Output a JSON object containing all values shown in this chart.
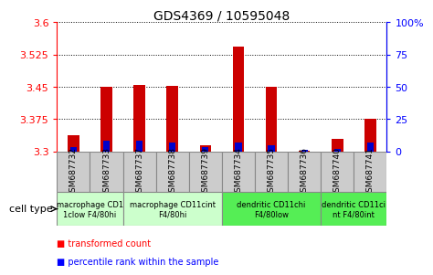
{
  "title": "GDS4369 / 10595048",
  "samples": [
    "GSM687732",
    "GSM687733",
    "GSM687737",
    "GSM687738",
    "GSM687739",
    "GSM687734",
    "GSM687735",
    "GSM687736",
    "GSM687740",
    "GSM687741"
  ],
  "transformed_count": [
    3.338,
    3.449,
    3.455,
    3.452,
    3.315,
    3.543,
    3.45,
    3.302,
    3.328,
    3.375
  ],
  "percentile_rank": [
    3,
    8,
    8,
    7,
    3,
    7,
    5,
    1,
    2,
    7
  ],
  "ylim_left": [
    3.3,
    3.6
  ],
  "ylim_right": [
    0,
    100
  ],
  "yticks_left": [
    3.3,
    3.375,
    3.45,
    3.525,
    3.6
  ],
  "yticks_right": [
    0,
    25,
    50,
    75,
    100
  ],
  "cell_type_groups": [
    {
      "label": "macrophage CD1\n1clow F4/80hi",
      "start": 0,
      "end": 2,
      "color": "#ccffcc"
    },
    {
      "label": "macrophage CD11cint\nF4/80hi",
      "start": 2,
      "end": 5,
      "color": "#ccffcc"
    },
    {
      "label": "dendritic CD11chi\nF4/80low",
      "start": 5,
      "end": 8,
      "color": "#55ee55"
    },
    {
      "label": "dendritic CD11ci\nnt F4/80int",
      "start": 8,
      "end": 10,
      "color": "#55ee55"
    }
  ],
  "bar_color_red": "#cc0000",
  "bar_color_blue": "#0000cc",
  "baseline": 3.3,
  "bar_width": 0.35,
  "blue_bar_width": 0.2,
  "sample_box_color": "#cccccc",
  "legend_red": "transformed count",
  "legend_blue": "percentile rank within the sample"
}
